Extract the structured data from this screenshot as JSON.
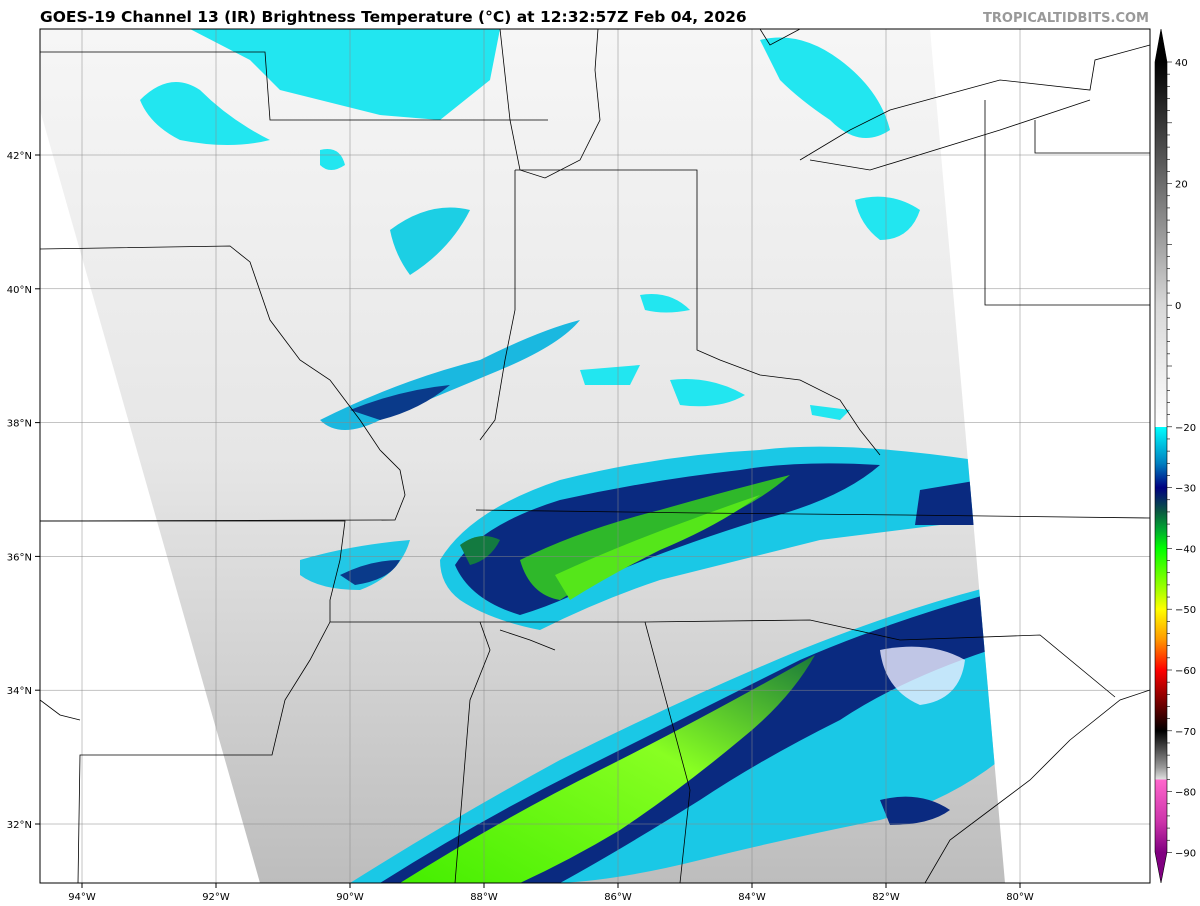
{
  "title": "GOES-19 Channel 13 (IR) Brightness Temperature (°C) at 12:32:57Z Feb 04, 2026",
  "watermark": "TROPICALTIDBITS.COM",
  "map": {
    "lon_labels": [
      "94°W",
      "92°W",
      "90°W",
      "88°W",
      "86°W",
      "84°W",
      "82°W",
      "80°W"
    ],
    "lon_values": [
      -94,
      -92,
      -90,
      -88,
      -86,
      -84,
      -82,
      -80
    ],
    "lat_labels": [
      "42°N",
      "40°N",
      "38°N",
      "36°N",
      "34°N",
      "32°N"
    ],
    "lat_values": [
      42,
      40,
      38,
      36,
      34,
      32
    ],
    "grid": true
  },
  "colorbar": {
    "range": [
      -90,
      40
    ],
    "tick_labels": [
      "40",
      "20",
      "0",
      "−20",
      "−30",
      "−40",
      "−50",
      "−60",
      "−70",
      "−80",
      "−90"
    ],
    "tick_values": [
      40,
      20,
      0,
      -20,
      -30,
      -40,
      -50,
      -60,
      -70,
      -80,
      -90
    ],
    "colors": {
      "warm_black": "#000000",
      "zero_gray": "#d0d0d0",
      "cyan": "#00ffff",
      "navy": "#000080",
      "green": "#00e000",
      "yellow": "#ffff00",
      "red": "#ff0000",
      "magenta": "#ff66cc",
      "purple": "#800080"
    }
  }
}
